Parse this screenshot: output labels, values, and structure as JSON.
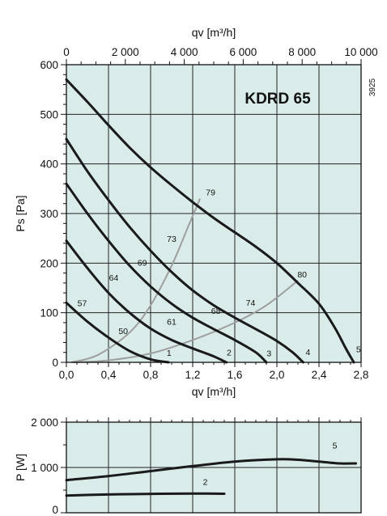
{
  "chart_data": [
    {
      "type": "line",
      "title": "KDRD 65",
      "code": "3925",
      "xlabel_top": "qv [m³/h]",
      "xlabel_bottom": "qv [m³/h]",
      "ylabel": "Ps [Pa]",
      "grid": true,
      "xlim_bottom": [
        0,
        2.8
      ],
      "xlim_top": [
        0,
        10000
      ],
      "ylim": [
        0,
        600
      ],
      "x_ticks_top": [
        "0",
        "2 000",
        "4 000",
        "6 000",
        "8 000",
        "10 000"
      ],
      "x_ticks_bottom": [
        "0,0",
        "0,4",
        "0,8",
        "1,2",
        "1,6",
        "2,0",
        "2,4",
        "2,8"
      ],
      "y_ticks": [
        "0",
        "100",
        "200",
        "300",
        "400",
        "500",
        "600"
      ],
      "series": [
        {
          "name": "1",
          "points": [
            [
              0,
              120
            ],
            [
              0.2,
              82
            ],
            [
              0.4,
              50
            ],
            [
              0.6,
              23
            ],
            [
              0.8,
              6
            ],
            [
              0.97,
              0
            ]
          ]
        },
        {
          "name": "2",
          "points": [
            [
              0,
              245
            ],
            [
              0.2,
              190
            ],
            [
              0.4,
              140
            ],
            [
              0.6,
              100
            ],
            [
              0.8,
              68
            ],
            [
              1.0,
              45
            ],
            [
              1.2,
              28
            ],
            [
              1.4,
              12
            ],
            [
              1.52,
              0
            ]
          ]
        },
        {
          "name": "3",
          "points": [
            [
              0,
              360
            ],
            [
              0.2,
              300
            ],
            [
              0.4,
              245
            ],
            [
              0.6,
              195
            ],
            [
              0.8,
              153
            ],
            [
              1.0,
              118
            ],
            [
              1.2,
              90
            ],
            [
              1.4,
              67
            ],
            [
              1.6,
              45
            ],
            [
              1.8,
              20
            ],
            [
              1.9,
              0
            ]
          ]
        },
        {
          "name": "4",
          "points": [
            [
              0,
              450
            ],
            [
              0.2,
              385
            ],
            [
              0.4,
              327
            ],
            [
              0.6,
              273
            ],
            [
              0.8,
              225
            ],
            [
              1.0,
              182
            ],
            [
              1.2,
              145
            ],
            [
              1.4,
              115
            ],
            [
              1.6,
              90
            ],
            [
              1.8,
              67
            ],
            [
              2.0,
              43
            ],
            [
              2.15,
              20
            ],
            [
              2.25,
              0
            ]
          ]
        },
        {
          "name": "5",
          "points": [
            [
              0,
              570
            ],
            [
              0.2,
              525
            ],
            [
              0.4,
              478
            ],
            [
              0.6,
              433
            ],
            [
              0.8,
              393
            ],
            [
              1.0,
              357
            ],
            [
              1.2,
              323
            ],
            [
              1.4,
              291
            ],
            [
              1.6,
              262
            ],
            [
              1.8,
              233
            ],
            [
              2.0,
              200
            ],
            [
              2.2,
              160
            ],
            [
              2.4,
              118
            ],
            [
              2.55,
              70
            ],
            [
              2.65,
              30
            ],
            [
              2.73,
              0
            ]
          ]
        }
      ],
      "efficiency_lines": [
        {
          "name": "eff-left",
          "points": [
            [
              0.05,
              0
            ],
            [
              0.3,
              15
            ],
            [
              0.6,
              60
            ],
            [
              0.8,
              115
            ],
            [
              1.0,
              195
            ],
            [
              1.15,
              270
            ],
            [
              1.27,
              330
            ]
          ]
        },
        {
          "name": "eff-right",
          "points": [
            [
              0.05,
              0
            ],
            [
              0.4,
              4
            ],
            [
              0.8,
              18
            ],
            [
              1.2,
              45
            ],
            [
              1.6,
              80
            ],
            [
              1.9,
              115
            ],
            [
              2.2,
              165
            ]
          ]
        }
      ],
      "curve_labels": [
        {
          "text": "1",
          "x": 0.93,
          "y": 13
        },
        {
          "text": "2",
          "x": 1.5,
          "y": 14
        },
        {
          "text": "3",
          "x": 1.88,
          "y": 12
        },
        {
          "text": "4",
          "x": 2.25,
          "y": 15
        },
        {
          "text": "5",
          "x": 2.73,
          "y": 20
        }
      ],
      "efficiency_labels": [
        {
          "text": "50",
          "x": 0.54,
          "y": 57
        },
        {
          "text": "57",
          "x": 0.15,
          "y": 113
        },
        {
          "text": "61",
          "x": 1.0,
          "y": 76
        },
        {
          "text": "64",
          "x": 0.45,
          "y": 165
        },
        {
          "text": "68",
          "x": 1.42,
          "y": 98
        },
        {
          "text": "69",
          "x": 0.72,
          "y": 195
        },
        {
          "text": "73",
          "x": 1.0,
          "y": 243
        },
        {
          "text": "74",
          "x": 1.75,
          "y": 114
        },
        {
          "text": "79",
          "x": 1.37,
          "y": 337
        },
        {
          "text": "80",
          "x": 2.24,
          "y": 171
        }
      ]
    },
    {
      "type": "line",
      "ylabel": "P [W]",
      "grid": true,
      "xlim": [
        0,
        2.8
      ],
      "ylim": [
        0,
        2000
      ],
      "y_ticks": [
        "0",
        "1 000",
        "2 000"
      ],
      "series": [
        {
          "name": "5",
          "points": [
            [
              0,
              720
            ],
            [
              0.4,
              810
            ],
            [
              0.8,
              920
            ],
            [
              1.2,
              1030
            ],
            [
              1.6,
              1130
            ],
            [
              2.0,
              1180
            ],
            [
              2.2,
              1170
            ],
            [
              2.4,
              1130
            ],
            [
              2.6,
              1090
            ],
            [
              2.75,
              1090
            ]
          ]
        },
        {
          "name": "2",
          "points": [
            [
              0,
              380
            ],
            [
              0.3,
              400
            ],
            [
              0.6,
              410
            ],
            [
              0.9,
              420
            ],
            [
              1.2,
              425
            ],
            [
              1.5,
              420
            ]
          ]
        }
      ],
      "curve_labels": [
        {
          "text": "5",
          "x": 2.55,
          "y": 1420
        },
        {
          "text": "2",
          "x": 1.32,
          "y": 620
        }
      ]
    }
  ]
}
